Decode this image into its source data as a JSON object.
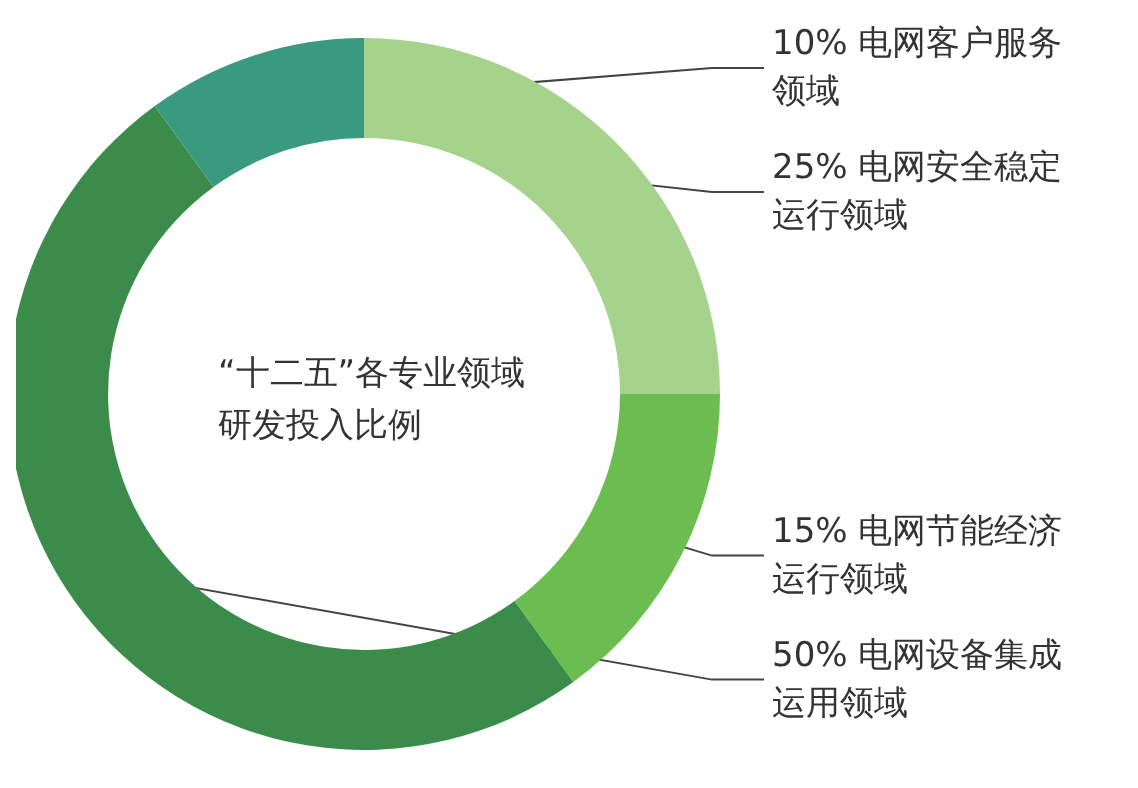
{
  "chart_data": {
    "type": "donut",
    "title": "“十二五”各专业领域研发投入比例",
    "categories": [
      "电网安全稳定运行领域",
      "电网节能经济运行领域",
      "电网设备集成运用领域",
      "电网客户服务领域"
    ],
    "values": [
      25,
      15,
      50,
      10
    ],
    "value_labels": [
      "25%",
      "15%",
      "50%",
      "10%"
    ],
    "colors": [
      "#a5d38c",
      "#6cbd4f",
      "#3b8c4b",
      "#3a9a7f"
    ],
    "legend": false
  }
}
